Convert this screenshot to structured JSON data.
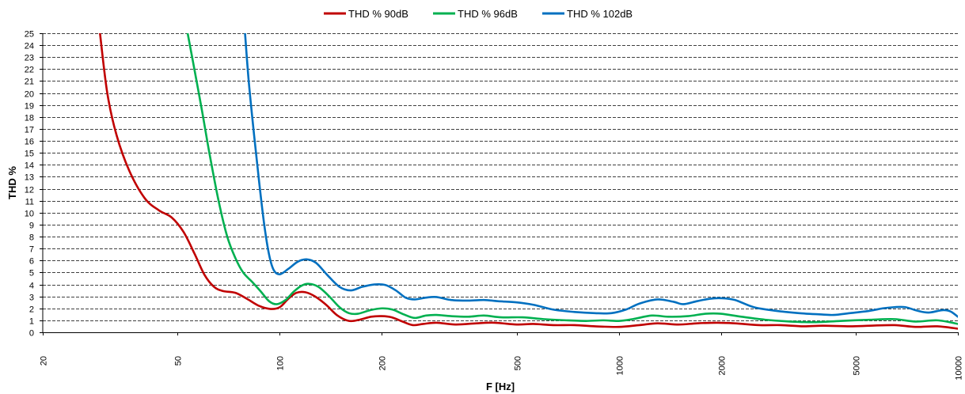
{
  "chart_data": {
    "type": "line",
    "title": "",
    "xlabel": "F [Hz]",
    "ylabel": "THD %",
    "x_scale": "log",
    "xlim": [
      20,
      10000
    ],
    "ylim": [
      0,
      25
    ],
    "x_ticks": [
      20,
      50,
      100,
      200,
      500,
      1000,
      2000,
      5000,
      10000
    ],
    "x_tick_labels": [
      "20",
      "50",
      "100",
      "200",
      "500",
      "1000",
      "2000",
      "5000",
      "10000"
    ],
    "y_ticks": [
      0,
      1,
      2,
      3,
      4,
      5,
      6,
      7,
      8,
      9,
      10,
      11,
      12,
      13,
      14,
      15,
      16,
      17,
      18,
      19,
      20,
      21,
      22,
      23,
      24,
      25
    ],
    "y_tick_labels": [
      "0",
      "1",
      "2",
      "3",
      "4",
      "5",
      "6",
      "7",
      "8",
      "9",
      "10",
      "11",
      "12",
      "13",
      "14",
      "15",
      "16",
      "17",
      "18",
      "19",
      "20",
      "21",
      "22",
      "23",
      "24",
      "25"
    ],
    "grid": "horizontal",
    "legend_position": "top",
    "series": [
      {
        "name": "THD % 90dB",
        "color": "#c00000",
        "points": [
          [
            29.5,
            25
          ],
          [
            31,
            20
          ],
          [
            33,
            16.5
          ],
          [
            36,
            13.5
          ],
          [
            40,
            11.2
          ],
          [
            44,
            10.2
          ],
          [
            48,
            9.6
          ],
          [
            52,
            8.4
          ],
          [
            56,
            6.6
          ],
          [
            60,
            4.8
          ],
          [
            64,
            3.8
          ],
          [
            68,
            3.45
          ],
          [
            74,
            3.3
          ],
          [
            80,
            2.8
          ],
          [
            87,
            2.2
          ],
          [
            94,
            1.95
          ],
          [
            100,
            2.1
          ],
          [
            106,
            2.8
          ],
          [
            112,
            3.3
          ],
          [
            119,
            3.35
          ],
          [
            127,
            3.0
          ],
          [
            137,
            2.3
          ],
          [
            148,
            1.4
          ],
          [
            160,
            0.95
          ],
          [
            172,
            1.05
          ],
          [
            186,
            1.3
          ],
          [
            200,
            1.35
          ],
          [
            214,
            1.25
          ],
          [
            230,
            0.9
          ],
          [
            247,
            0.6
          ],
          [
            265,
            0.7
          ],
          [
            290,
            0.8
          ],
          [
            330,
            0.65
          ],
          [
            380,
            0.75
          ],
          [
            430,
            0.8
          ],
          [
            500,
            0.65
          ],
          [
            560,
            0.7
          ],
          [
            640,
            0.6
          ],
          [
            740,
            0.6
          ],
          [
            850,
            0.5
          ],
          [
            1000,
            0.45
          ],
          [
            1150,
            0.6
          ],
          [
            1300,
            0.75
          ],
          [
            1500,
            0.65
          ],
          [
            1700,
            0.75
          ],
          [
            1950,
            0.8
          ],
          [
            2200,
            0.75
          ],
          [
            2600,
            0.6
          ],
          [
            3000,
            0.6
          ],
          [
            3500,
            0.5
          ],
          [
            4000,
            0.55
          ],
          [
            4800,
            0.5
          ],
          [
            5500,
            0.55
          ],
          [
            6500,
            0.6
          ],
          [
            7500,
            0.45
          ],
          [
            8700,
            0.5
          ],
          [
            10000,
            0.3
          ]
        ]
      },
      {
        "name": "THD % 96dB",
        "color": "#00b050",
        "points": [
          [
            53.5,
            25
          ],
          [
            56,
            22
          ],
          [
            59,
            18.5
          ],
          [
            62,
            15
          ],
          [
            66,
            11
          ],
          [
            70,
            8
          ],
          [
            74,
            6.2
          ],
          [
            78,
            5.0
          ],
          [
            83,
            4.2
          ],
          [
            88,
            3.4
          ],
          [
            93,
            2.6
          ],
          [
            98,
            2.35
          ],
          [
            104,
            2.7
          ],
          [
            110,
            3.4
          ],
          [
            116,
            3.9
          ],
          [
            122,
            4.05
          ],
          [
            130,
            3.8
          ],
          [
            140,
            3.0
          ],
          [
            150,
            2.1
          ],
          [
            160,
            1.6
          ],
          [
            170,
            1.55
          ],
          [
            185,
            1.85
          ],
          [
            200,
            2.0
          ],
          [
            215,
            1.9
          ],
          [
            232,
            1.5
          ],
          [
            250,
            1.2
          ],
          [
            270,
            1.4
          ],
          [
            290,
            1.45
          ],
          [
            320,
            1.35
          ],
          [
            360,
            1.3
          ],
          [
            400,
            1.4
          ],
          [
            450,
            1.25
          ],
          [
            520,
            1.25
          ],
          [
            600,
            1.1
          ],
          [
            700,
            1.0
          ],
          [
            800,
            0.95
          ],
          [
            900,
            1.0
          ],
          [
            1000,
            0.95
          ],
          [
            1100,
            1.1
          ],
          [
            1250,
            1.4
          ],
          [
            1400,
            1.3
          ],
          [
            1600,
            1.35
          ],
          [
            1800,
            1.55
          ],
          [
            2000,
            1.55
          ],
          [
            2300,
            1.3
          ],
          [
            2700,
            1.05
          ],
          [
            3200,
            0.9
          ],
          [
            3800,
            0.85
          ],
          [
            4500,
            0.95
          ],
          [
            5500,
            1.05
          ],
          [
            6500,
            1.1
          ],
          [
            7500,
            0.9
          ],
          [
            8700,
            1.0
          ],
          [
            10000,
            0.7
          ]
        ]
      },
      {
        "name": "THD % 102dB",
        "color": "#0070c0",
        "points": [
          [
            79,
            25
          ],
          [
            81,
            21
          ],
          [
            84,
            16.5
          ],
          [
            87,
            12.5
          ],
          [
            90,
            9
          ],
          [
            93,
            6.5
          ],
          [
            96,
            5.2
          ],
          [
            100,
            4.85
          ],
          [
            106,
            5.3
          ],
          [
            113,
            5.9
          ],
          [
            120,
            6.1
          ],
          [
            128,
            5.8
          ],
          [
            138,
            4.8
          ],
          [
            150,
            3.8
          ],
          [
            162,
            3.5
          ],
          [
            175,
            3.8
          ],
          [
            190,
            4.0
          ],
          [
            205,
            3.95
          ],
          [
            220,
            3.5
          ],
          [
            235,
            2.9
          ],
          [
            250,
            2.75
          ],
          [
            270,
            2.9
          ],
          [
            290,
            2.95
          ],
          [
            320,
            2.7
          ],
          [
            360,
            2.65
          ],
          [
            400,
            2.7
          ],
          [
            440,
            2.6
          ],
          [
            500,
            2.5
          ],
          [
            560,
            2.3
          ],
          [
            640,
            1.9
          ],
          [
            740,
            1.7
          ],
          [
            850,
            1.6
          ],
          [
            950,
            1.6
          ],
          [
            1050,
            1.9
          ],
          [
            1150,
            2.4
          ],
          [
            1300,
            2.75
          ],
          [
            1450,
            2.55
          ],
          [
            1550,
            2.35
          ],
          [
            1700,
            2.6
          ],
          [
            1850,
            2.8
          ],
          [
            2000,
            2.85
          ],
          [
            2200,
            2.7
          ],
          [
            2500,
            2.1
          ],
          [
            2900,
            1.8
          ],
          [
            3400,
            1.6
          ],
          [
            3900,
            1.5
          ],
          [
            4300,
            1.45
          ],
          [
            4800,
            1.6
          ],
          [
            5500,
            1.8
          ],
          [
            6000,
            2.0
          ],
          [
            6500,
            2.1
          ],
          [
            7000,
            2.1
          ],
          [
            7600,
            1.8
          ],
          [
            8200,
            1.65
          ],
          [
            9000,
            1.85
          ],
          [
            9500,
            1.75
          ],
          [
            10000,
            1.3
          ]
        ]
      }
    ]
  }
}
